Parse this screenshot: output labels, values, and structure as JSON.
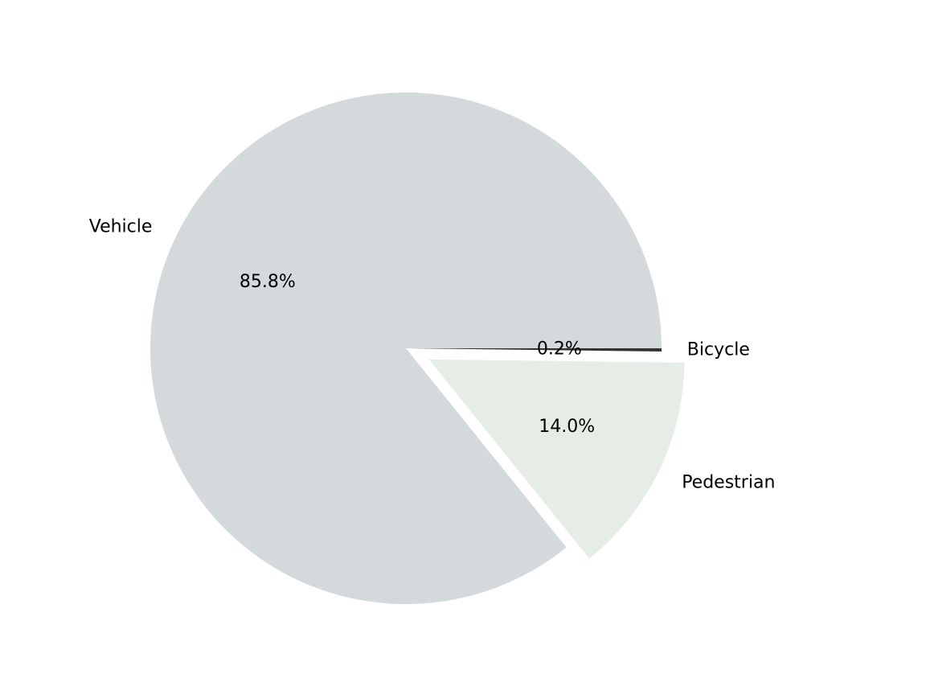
{
  "chart_data": {
    "type": "pie",
    "title": "",
    "startangle": 0,
    "direction": "clockwise",
    "slices": [
      {
        "label": "Bicycle",
        "value": 0.2,
        "pct_label": "0.2%",
        "color": "#333333",
        "explode": 0
      },
      {
        "label": "Pedestrian",
        "value": 14.0,
        "pct_label": "14.0%",
        "color": "#e6ede7",
        "explode": 0.1
      },
      {
        "label": "Vehicle",
        "value": 85.8,
        "pct_label": "85.8%",
        "color": "#d4d9db",
        "explode": 0
      }
    ],
    "background": "#ffffff"
  }
}
